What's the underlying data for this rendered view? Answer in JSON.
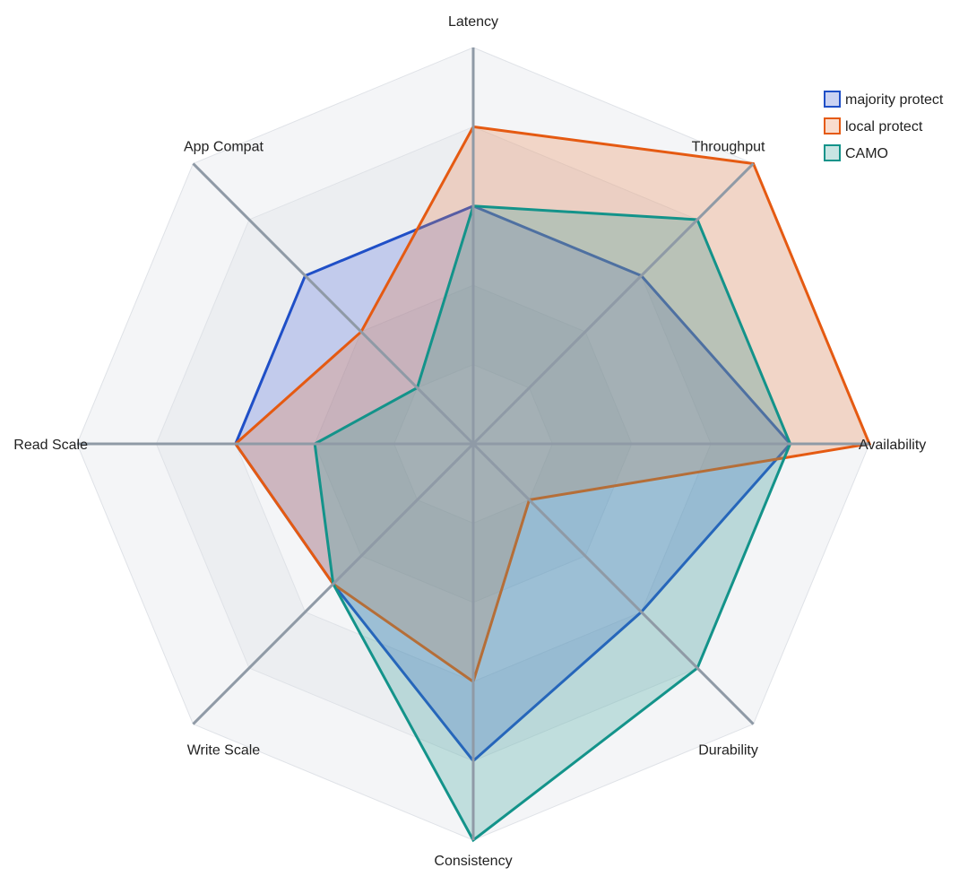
{
  "chart_data": {
    "type": "radar",
    "axes": [
      "Latency",
      "Throughput",
      "Availability",
      "Durability",
      "Consistency",
      "Write Scale",
      "Read Scale",
      "App Compat"
    ],
    "range": [
      0,
      10
    ],
    "grid_levels": 5,
    "series": [
      {
        "name": "majority protect",
        "color": "#1f4fc7",
        "fill": "#3f5fd1",
        "values": [
          6,
          6,
          8,
          6,
          8,
          5,
          6,
          6
        ]
      },
      {
        "name": "local protect",
        "color": "#e55a12",
        "fill": "#e8834a",
        "values": [
          8,
          10,
          10,
          2,
          6,
          5,
          6,
          4
        ]
      },
      {
        "name": "CAMO",
        "color": "#13938a",
        "fill": "#3aa39a",
        "values": [
          6,
          8,
          8,
          8,
          10,
          5,
          4,
          2
        ]
      }
    ],
    "legend_position": "top-right"
  }
}
